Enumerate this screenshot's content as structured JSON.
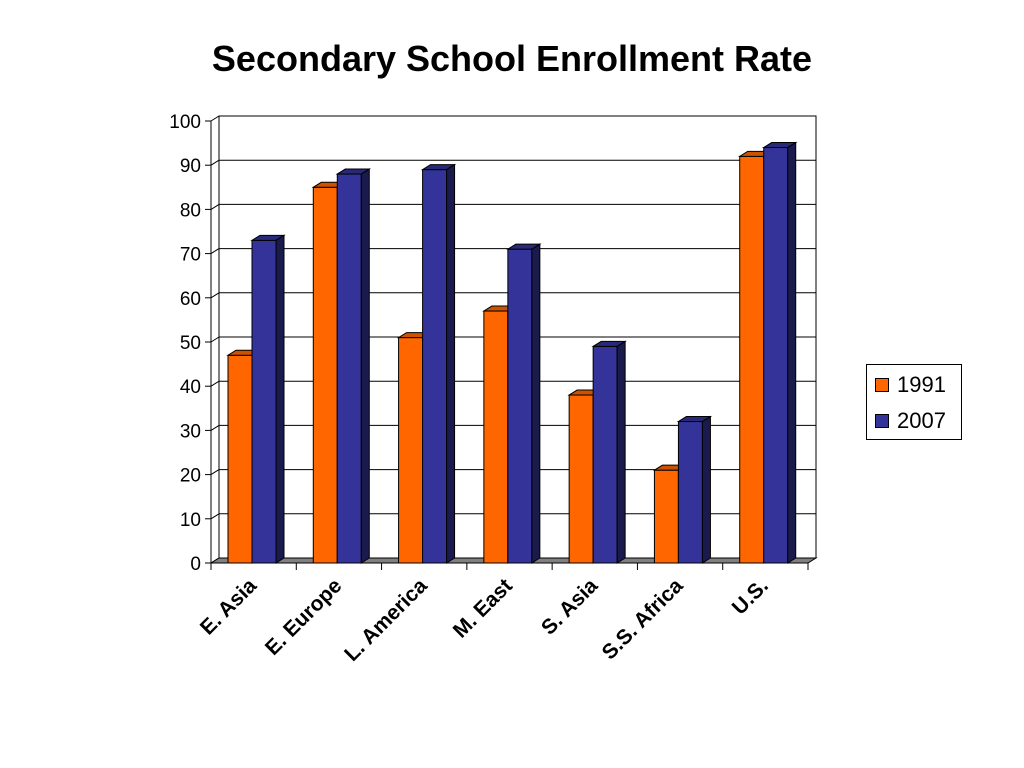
{
  "chart_data": {
    "type": "bar",
    "title": "Secondary School Enrollment Rate",
    "xlabel": "",
    "ylabel": "",
    "ylim": [
      0,
      100
    ],
    "yticks": [
      0,
      10,
      20,
      30,
      40,
      50,
      60,
      70,
      80,
      90,
      100
    ],
    "grid": true,
    "legend_position": "right",
    "categories": [
      "E. Asia",
      "E. Europe",
      "L. America",
      "M. East",
      "S. Asia",
      "S.S. Africa",
      "U.S."
    ],
    "series": [
      {
        "name": "1991",
        "color": "#FF6600",
        "values": [
          47,
          85,
          51,
          57,
          38,
          21,
          92
        ]
      },
      {
        "name": "2007",
        "color": "#333399",
        "values": [
          73,
          88,
          89,
          71,
          49,
          32,
          94
        ]
      }
    ]
  }
}
